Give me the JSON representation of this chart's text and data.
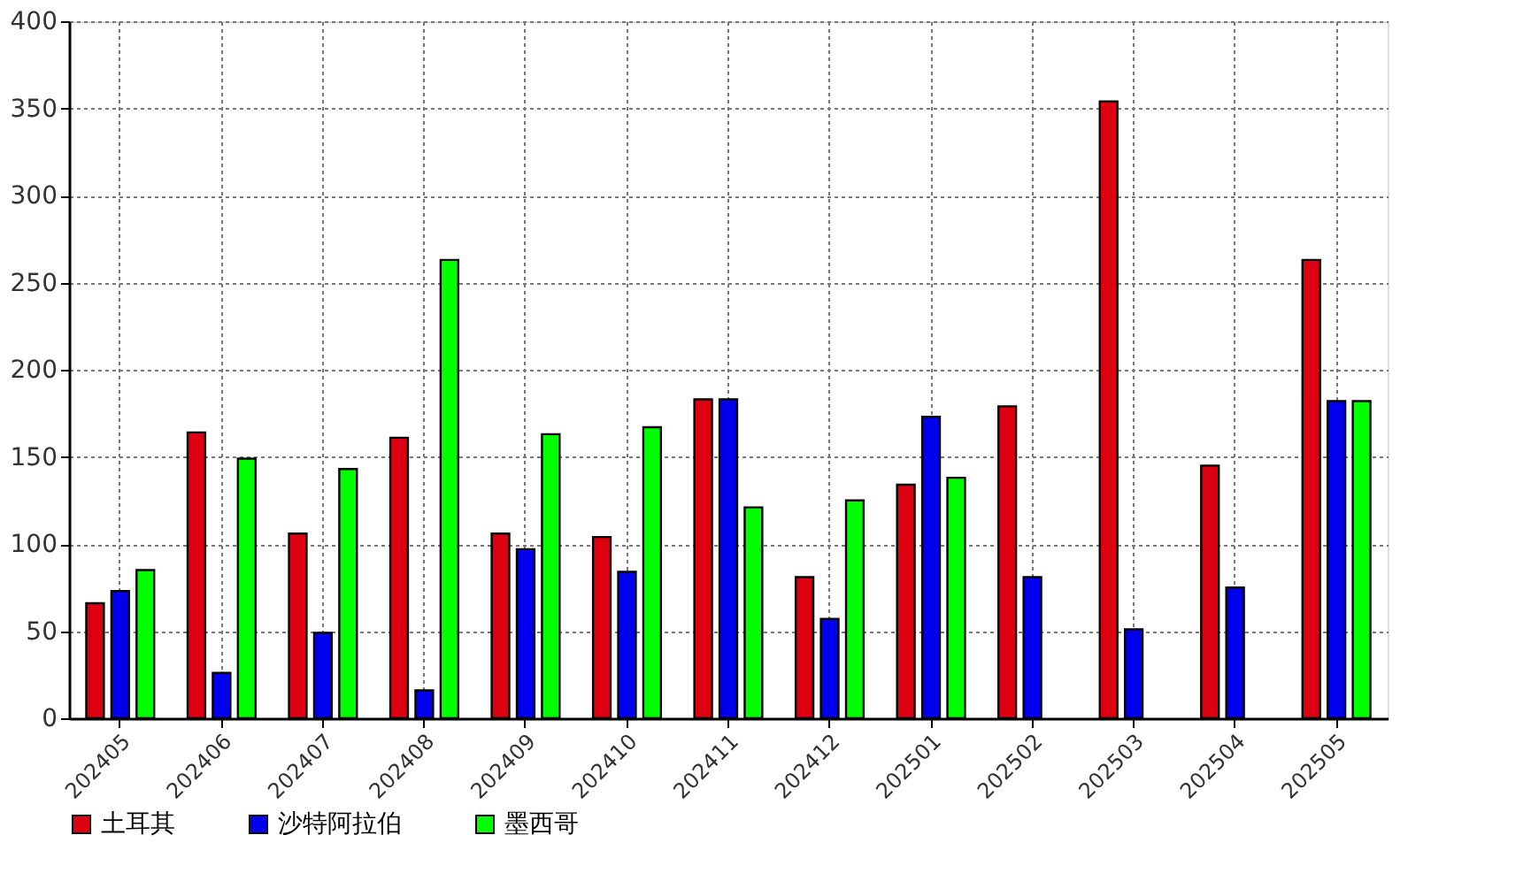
{
  "chart_data": {
    "type": "bar",
    "categories": [
      "202405",
      "202406",
      "202407",
      "202408",
      "202409",
      "202410",
      "202411",
      "202412",
      "202501",
      "202502",
      "202503",
      "202504",
      "202505"
    ],
    "series": [
      {
        "name": "土耳其",
        "color": "#dd0011",
        "values": [
          66,
          164,
          106,
          161,
          106,
          104,
          183,
          81,
          134,
          179,
          354,
          145,
          263
        ]
      },
      {
        "name": "沙特阿拉伯",
        "color": "#0000ee",
        "values": [
          73,
          26,
          49,
          16,
          97,
          84,
          183,
          57,
          173,
          81,
          51,
          75,
          182
        ]
      },
      {
        "name": "墨西哥",
        "color": "#00ff00",
        "values": [
          85,
          149,
          143,
          263,
          163,
          167,
          121,
          125,
          138,
          null,
          null,
          null,
          182
        ]
      }
    ],
    "ylim": [
      0,
      400
    ],
    "yticks": [
      0,
      50,
      100,
      150,
      200,
      250,
      300,
      350,
      400
    ],
    "grid": true,
    "legend": "bottom left"
  }
}
